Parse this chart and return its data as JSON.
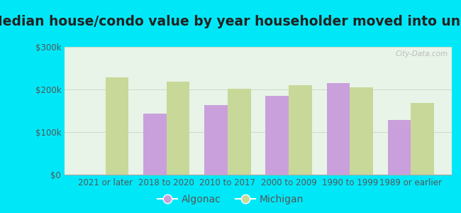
{
  "title": "Median house/condo value by year householder moved into unit",
  "categories": [
    "2021 or later",
    "2018 to 2020",
    "2010 to 2017",
    "2000 to 2009",
    "1990 to 1999",
    "1989 or earlier"
  ],
  "algonac_values": [
    0,
    143000,
    163000,
    185000,
    215000,
    128000
  ],
  "michigan_values": [
    228000,
    218000,
    202000,
    210000,
    205000,
    168000
  ],
  "algonac_color": "#c9a0dc",
  "michigan_color": "#c8d898",
  "background_outer": "#00e8f8",
  "ylim": [
    0,
    300000
  ],
  "yticks": [
    0,
    100000,
    200000,
    300000
  ],
  "ytick_labels": [
    "$0",
    "$100k",
    "$200k",
    "$300k"
  ],
  "bar_width": 0.38,
  "legend_labels": [
    "Algonac",
    "Michigan"
  ],
  "title_fontsize": 13.5,
  "tick_fontsize": 8.5,
  "legend_fontsize": 10,
  "grid_color": "#ccddcc",
  "text_color": "#555555"
}
